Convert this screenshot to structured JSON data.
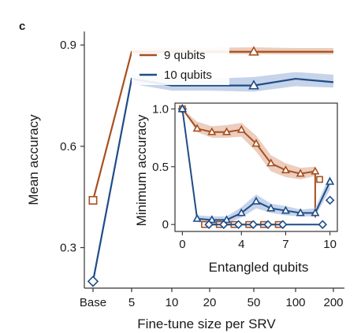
{
  "panel_label": "c",
  "colors": {
    "s9": "#a8501f",
    "s10": "#1f4c86",
    "s9_band": "#e8c5b4",
    "s10_band": "#bccde6"
  },
  "chart_data": [
    {
      "type": "line",
      "name": "main",
      "xlabel": "Fine-tune size per SRV",
      "ylabel": "Mean accuracy",
      "x_tick_labels": [
        "Base",
        "5",
        "10",
        "20",
        "50",
        "100",
        "200"
      ],
      "y_ticks": [
        0.3,
        0.6,
        0.9
      ],
      "y_tick_labels": [
        "0.3",
        "0.6",
        "0.9"
      ],
      "ylim": [
        0.18,
        0.94
      ],
      "legend_position": "top-center",
      "series": [
        {
          "name": "9 qubits",
          "color_key": "s9",
          "marker": "triangle-up",
          "x": [
            "Base",
            "5",
            "10",
            "20",
            "50",
            "100",
            "200"
          ],
          "y": [
            0.44,
            0.88,
            0.88,
            0.88,
            0.88,
            0.88,
            0.88
          ],
          "band_low": [
            0.44,
            0.872,
            0.873,
            0.873,
            0.873,
            0.872,
            0.872
          ],
          "band_high": [
            0.44,
            0.892,
            0.892,
            0.892,
            0.893,
            0.891,
            0.891
          ],
          "base_marker": "square",
          "highlight_index": 4
        },
        {
          "name": "10 qubits",
          "color_key": "s10",
          "marker": "triangle-up",
          "x": [
            "Base",
            "5",
            "10",
            "20",
            "50",
            "100",
            "200"
          ],
          "y": [
            0.2,
            0.8,
            0.78,
            0.78,
            0.78,
            0.8,
            0.79
          ],
          "band_low": [
            0.2,
            0.785,
            0.765,
            0.765,
            0.762,
            0.778,
            0.774
          ],
          "band_high": [
            0.2,
            0.815,
            0.8,
            0.8,
            0.805,
            0.82,
            0.812
          ],
          "base_marker": "diamond",
          "highlight_index": 4
        }
      ]
    },
    {
      "type": "line",
      "name": "inset",
      "xlabel": "Entangled qubits",
      "ylabel": "Minimum accuracy",
      "x_ticks": [
        0,
        4,
        7,
        10
      ],
      "y_ticks": [
        0,
        0.5,
        1.0
      ],
      "y_tick_labels": [
        "0",
        "0.5",
        "1.0"
      ],
      "xlim": [
        -0.5,
        10.5
      ],
      "ylim": [
        -0.06,
        1.05
      ],
      "series": [
        {
          "name": "9 qubits",
          "color_key": "s9",
          "marker": "triangle-up",
          "x": [
            0,
            1,
            2,
            3,
            4,
            5,
            6,
            7,
            8,
            9
          ],
          "y": [
            1.0,
            0.83,
            0.8,
            0.8,
            0.82,
            0.7,
            0.53,
            0.47,
            0.44,
            0.46
          ],
          "band_low": [
            1.0,
            0.8,
            0.75,
            0.75,
            0.76,
            0.63,
            0.46,
            0.41,
            0.39,
            0.42
          ],
          "band_high": [
            1.0,
            0.89,
            0.85,
            0.86,
            0.88,
            0.77,
            0.6,
            0.53,
            0.49,
            0.5
          ],
          "drop_x": [
            9,
            9
          ],
          "drop_y": [
            0.46,
            0.06
          ],
          "alt_points": [
            {
              "x": 1.5,
              "y": 0.0
            },
            {
              "x": 2.5,
              "y": 0.0
            },
            {
              "x": 3.5,
              "y": 0.0
            },
            {
              "x": 4.5,
              "y": 0.0
            },
            {
              "x": 5.5,
              "y": 0.0
            },
            {
              "x": 6.5,
              "y": 0.0
            },
            {
              "x": 9.3,
              "y": 0.39
            }
          ],
          "alt_marker": "square"
        },
        {
          "name": "10 qubits",
          "color_key": "s10",
          "marker": "triangle-up",
          "x": [
            0,
            1,
            2,
            3,
            4,
            5,
            6,
            7,
            8,
            9,
            10
          ],
          "y": [
            1.0,
            0.05,
            0.04,
            0.04,
            0.1,
            0.2,
            0.14,
            0.12,
            0.1,
            0.1,
            0.37
          ],
          "band_low": [
            1.0,
            0.02,
            0.01,
            0.01,
            0.06,
            0.14,
            0.1,
            0.08,
            0.07,
            0.07,
            0.3
          ],
          "band_high": [
            1.0,
            0.08,
            0.07,
            0.07,
            0.15,
            0.26,
            0.18,
            0.16,
            0.13,
            0.14,
            0.43
          ],
          "alt_points": [
            {
              "x": 0,
              "y": 1.0
            },
            {
              "x": 1.8,
              "y": 0.0
            },
            {
              "x": 2.8,
              "y": 0.0
            },
            {
              "x": 3.8,
              "y": 0.0
            },
            {
              "x": 4.8,
              "y": 0.0
            },
            {
              "x": 5.8,
              "y": 0.0
            },
            {
              "x": 6.8,
              "y": 0.0
            },
            {
              "x": 9.5,
              "y": 0.0
            },
            {
              "x": 10,
              "y": 0.21
            }
          ],
          "alt_marker": "diamond"
        }
      ]
    }
  ]
}
